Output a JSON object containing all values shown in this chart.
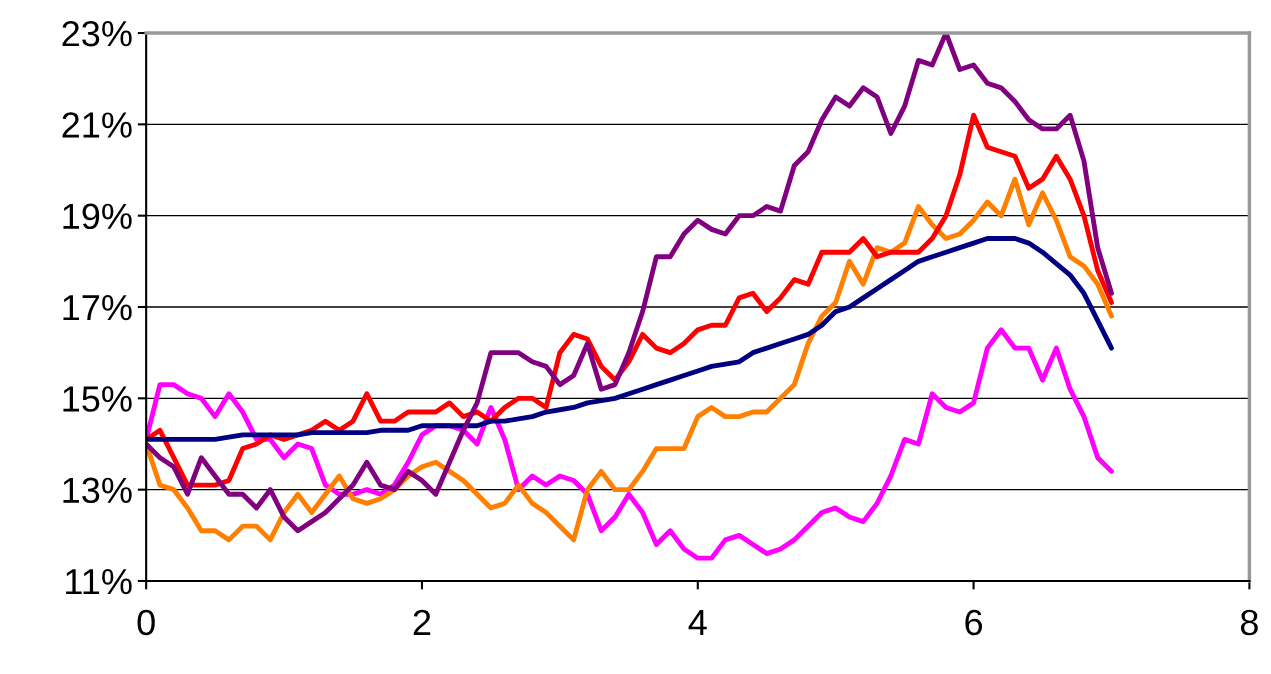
{
  "chart_data": {
    "type": "line",
    "x": [
      0,
      0.1,
      0.2,
      0.3,
      0.4,
      0.5,
      0.6,
      0.7,
      0.8,
      0.9,
      1.0,
      1.1,
      1.2,
      1.3,
      1.4,
      1.5,
      1.6,
      1.7,
      1.8,
      1.9,
      2.0,
      2.1,
      2.2,
      2.3,
      2.4,
      2.5,
      2.6,
      2.7,
      2.8,
      2.9,
      3.0,
      3.1,
      3.2,
      3.3,
      3.4,
      3.5,
      3.6,
      3.7,
      3.8,
      3.9,
      4.0,
      4.1,
      4.2,
      4.3,
      4.4,
      4.5,
      4.6,
      4.7,
      4.8,
      4.9,
      5.0,
      5.1,
      5.2,
      5.3,
      5.4,
      5.5,
      5.6,
      5.7,
      5.8,
      5.9,
      6.0,
      6.1,
      6.2,
      6.3,
      6.4,
      6.5,
      6.6,
      6.7,
      6.8,
      6.9,
      7.0
    ],
    "series": [
      {
        "color": "#ff00ff",
        "values": [
          14.1,
          15.3,
          15.3,
          15.1,
          15.0,
          14.6,
          15.1,
          14.7,
          14.1,
          14.1,
          13.7,
          14.0,
          13.9,
          13.1,
          12.9,
          12.9,
          13.0,
          12.9,
          13.1,
          13.6,
          14.2,
          14.4,
          14.4,
          14.3,
          14.0,
          14.8,
          14.1,
          13.0,
          13.3,
          13.1,
          13.3,
          13.2,
          12.9,
          12.1,
          12.4,
          12.9,
          12.5,
          11.8,
          12.1,
          11.7,
          11.5,
          11.5,
          11.9,
          12.0,
          11.8,
          11.6,
          11.7,
          11.9,
          12.2,
          12.5,
          12.6,
          12.4,
          12.3,
          12.7,
          13.3,
          14.1,
          14.0,
          15.1,
          14.8,
          14.7,
          14.9,
          16.1,
          16.5,
          16.1,
          16.1,
          15.4,
          16.1,
          15.2,
          14.6,
          13.7,
          13.4
        ]
      },
      {
        "color": "#ff8000",
        "values": [
          14.0,
          13.1,
          13.0,
          12.6,
          12.1,
          12.1,
          11.9,
          12.2,
          12.2,
          11.9,
          12.5,
          12.9,
          12.5,
          12.9,
          13.3,
          12.8,
          12.7,
          12.8,
          13.0,
          13.3,
          13.5,
          13.6,
          13.4,
          13.2,
          12.9,
          12.6,
          12.7,
          13.1,
          12.7,
          12.5,
          12.2,
          11.9,
          13.0,
          13.4,
          13.0,
          13.0,
          13.4,
          13.9,
          13.9,
          13.9,
          14.6,
          14.8,
          14.6,
          14.6,
          14.7,
          14.7,
          15.0,
          15.3,
          16.2,
          16.8,
          17.1,
          18.0,
          17.5,
          18.3,
          18.2,
          18.4,
          19.2,
          18.8,
          18.5,
          18.6,
          18.9,
          19.3,
          19.0,
          19.8,
          18.8,
          19.5,
          18.9,
          18.1,
          17.9,
          17.5,
          16.8
        ]
      },
      {
        "color": "#ff0000",
        "values": [
          14.1,
          14.3,
          13.7,
          13.1,
          13.1,
          13.1,
          13.2,
          13.9,
          14.0,
          14.2,
          14.1,
          14.2,
          14.3,
          14.5,
          14.3,
          14.5,
          15.1,
          14.5,
          14.5,
          14.7,
          14.7,
          14.7,
          14.9,
          14.6,
          14.7,
          14.5,
          14.8,
          15.0,
          15.0,
          14.8,
          16.0,
          16.4,
          16.3,
          15.7,
          15.4,
          15.8,
          16.4,
          16.1,
          16.0,
          16.2,
          16.5,
          16.6,
          16.6,
          17.2,
          17.3,
          16.9,
          17.2,
          17.6,
          17.5,
          18.2,
          18.2,
          18.2,
          18.5,
          18.1,
          18.2,
          18.2,
          18.2,
          18.5,
          19.0,
          19.9,
          21.2,
          20.5,
          20.4,
          20.3,
          19.6,
          19.8,
          20.3,
          19.8,
          19.0,
          17.8,
          17.1
        ]
      },
      {
        "color": "#000080",
        "values": [
          14.1,
          14.1,
          14.1,
          14.1,
          14.1,
          14.1,
          14.15,
          14.2,
          14.2,
          14.2,
          14.2,
          14.2,
          14.25,
          14.25,
          14.25,
          14.25,
          14.25,
          14.3,
          14.3,
          14.3,
          14.4,
          14.4,
          14.4,
          14.4,
          14.4,
          14.5,
          14.5,
          14.55,
          14.6,
          14.7,
          14.75,
          14.8,
          14.9,
          14.95,
          15.0,
          15.1,
          15.2,
          15.3,
          15.4,
          15.5,
          15.6,
          15.7,
          15.75,
          15.8,
          16.0,
          16.1,
          16.2,
          16.3,
          16.4,
          16.6,
          16.9,
          17.0,
          17.2,
          17.4,
          17.6,
          17.8,
          18.0,
          18.1,
          18.2,
          18.3,
          18.4,
          18.5,
          18.5,
          18.5,
          18.4,
          18.2,
          17.95,
          17.7,
          17.3,
          16.7,
          16.1
        ]
      },
      {
        "color": "#800080",
        "values": [
          14.0,
          13.7,
          13.5,
          12.9,
          13.7,
          13.3,
          12.9,
          12.9,
          12.6,
          13.0,
          12.4,
          12.1,
          12.3,
          12.5,
          12.8,
          13.1,
          13.6,
          13.1,
          13.0,
          13.4,
          13.2,
          12.9,
          13.6,
          14.3,
          14.9,
          16.0,
          16.0,
          16.0,
          15.8,
          15.7,
          15.3,
          15.5,
          16.2,
          15.2,
          15.3,
          16.0,
          16.9,
          18.1,
          18.1,
          18.6,
          18.9,
          18.7,
          18.6,
          19.0,
          19.0,
          19.2,
          19.1,
          20.1,
          20.4,
          21.1,
          21.6,
          21.4,
          21.8,
          21.6,
          20.8,
          21.4,
          22.4,
          22.3,
          23.0,
          22.2,
          22.3,
          21.9,
          21.8,
          21.5,
          21.1,
          20.9,
          20.9,
          21.2,
          20.2,
          18.3,
          17.3
        ]
      }
    ],
    "xlim": [
      0,
      8
    ],
    "xticks": [
      0,
      2,
      4,
      6,
      8
    ],
    "ylim": [
      11,
      23
    ],
    "yticks": [
      {
        "value": 11,
        "label": "11%"
      },
      {
        "value": 13,
        "label": "13%"
      },
      {
        "value": 15,
        "label": "15%"
      },
      {
        "value": 17,
        "label": "17%"
      },
      {
        "value": 19,
        "label": "19%"
      },
      {
        "value": 21,
        "label": "21%"
      },
      {
        "value": 23,
        "label": "23%"
      }
    ],
    "grid": "y",
    "line_style": "solid"
  }
}
